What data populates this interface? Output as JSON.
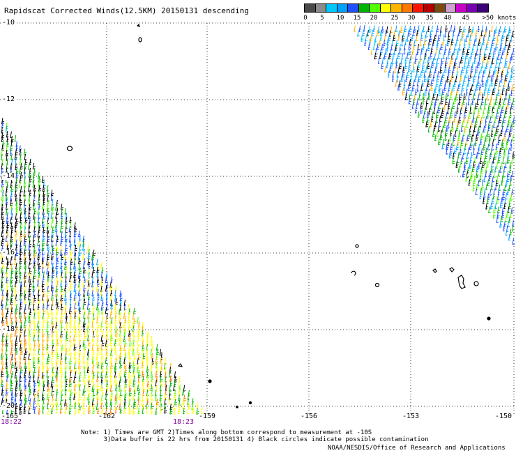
{
  "title": "Rapidscat Corrected Winds(12.5KM) 20150131 descending",
  "colorbar": {
    "colors": [
      "#4a4a4a",
      "#8c8c8c",
      "#00c8ff",
      "#00a0ff",
      "#1e50ff",
      "#00b400",
      "#50ff00",
      "#ffff00",
      "#ffb400",
      "#ff7800",
      "#ff1400",
      "#b40000",
      "#7a4a10",
      "#d2a0d2",
      "#c800c8",
      "#7800b4",
      "#3c0078"
    ],
    "labels": [
      "0",
      "5",
      "10",
      "15",
      "20",
      "25",
      "30",
      "35",
      "40",
      "45",
      ">50 knots"
    ]
  },
  "map": {
    "lat_labels": [
      "-10",
      "-12",
      "-14",
      "-16",
      "-18",
      "-20"
    ],
    "lon_labels": [
      "-165",
      "-162",
      "-159",
      "-156",
      "-153",
      "-150"
    ],
    "time_labels": [
      "18:22",
      "18:23"
    ]
  },
  "notes": {
    "line1": "Note: 1) Times are GMT 2)Times along bottom correspond to measurement at -10S",
    "line2": "      3)Data buffer is 22 hrs from 20150131 4) Black circles indicate possible contamination",
    "credit": "NOAA/NESDIS/Office of Research and Applications"
  }
}
